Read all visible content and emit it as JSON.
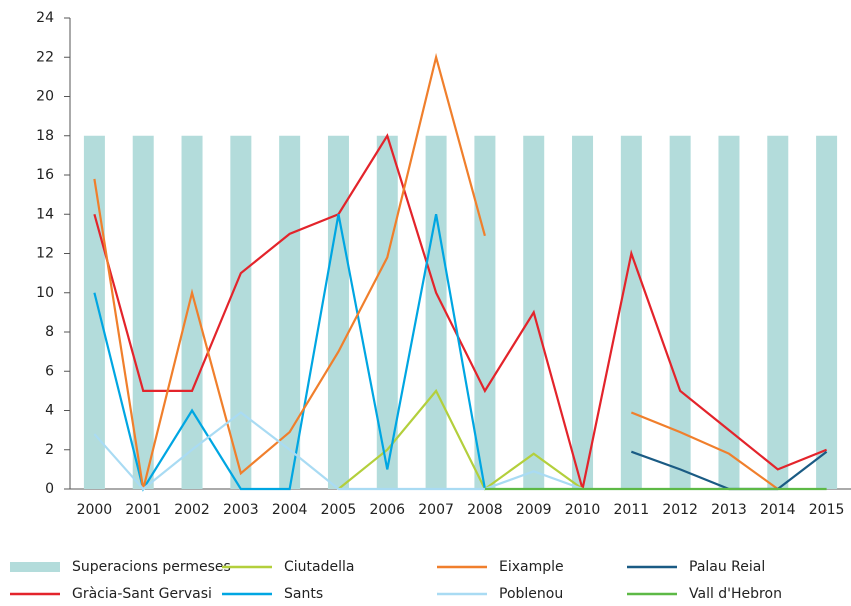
{
  "chart_data": {
    "type": "combo",
    "categories": [
      "2000",
      "2001",
      "2002",
      "2003",
      "2004",
      "2005",
      "2006",
      "2007",
      "2008",
      "2009",
      "2010",
      "2011",
      "2012",
      "2013",
      "2014",
      "2015"
    ],
    "ylim": [
      0,
      24
    ],
    "yticks": [
      0,
      2,
      4,
      6,
      8,
      10,
      12,
      14,
      16,
      18,
      20,
      22,
      24
    ],
    "series": [
      {
        "name": "Superacions permeses",
        "type": "bar",
        "color": "#b3dcdb",
        "values": [
          18,
          18,
          18,
          18,
          18,
          18,
          18,
          18,
          18,
          18,
          18,
          18,
          18,
          18,
          18,
          18
        ]
      },
      {
        "name": "Gràcia-Sant Gervasi",
        "type": "line",
        "color": "#e3242b",
        "values": [
          14,
          5,
          5,
          11,
          13,
          14,
          18,
          10,
          5,
          9,
          0,
          12,
          5,
          3,
          1,
          2
        ]
      },
      {
        "name": "Ciutadella",
        "type": "line",
        "color": "#b3cf3c",
        "values": [
          null,
          null,
          null,
          null,
          null,
          0,
          2,
          5,
          0,
          1.8,
          0,
          null,
          null,
          null,
          null,
          null
        ]
      },
      {
        "name": "Sants",
        "type": "line",
        "color": "#00a6e2",
        "values": [
          10,
          0,
          4,
          0,
          0,
          14,
          1,
          14,
          0,
          null,
          null,
          null,
          null,
          null,
          null,
          null
        ]
      },
      {
        "name": "Eixample",
        "type": "line",
        "color": "#f07f2c",
        "values": [
          15.8,
          0,
          10,
          0.8,
          2.9,
          7,
          11.8,
          22,
          12.9,
          null,
          null,
          3.9,
          2.9,
          1.8,
          0,
          null
        ]
      },
      {
        "name": "Poblenou",
        "type": "line",
        "color": "#a9dbf3",
        "values": [
          2.8,
          0,
          2,
          3.9,
          2,
          0,
          0,
          0,
          0,
          0.9,
          0,
          null,
          null,
          null,
          null,
          null
        ]
      },
      {
        "name": "Palau Reial",
        "type": "line",
        "color": "#1a5b84",
        "values": [
          null,
          null,
          null,
          null,
          null,
          null,
          null,
          null,
          null,
          null,
          null,
          1.9,
          1,
          0,
          0,
          1.9
        ]
      },
      {
        "name": "Vall d'Hebron",
        "type": "line",
        "color": "#5db946",
        "values": [
          null,
          null,
          null,
          null,
          null,
          null,
          null,
          null,
          0,
          0,
          0,
          0,
          0,
          0,
          0,
          0
        ]
      }
    ],
    "legend_order": [
      0,
      2,
      4,
      6,
      1,
      3,
      5,
      7
    ]
  }
}
